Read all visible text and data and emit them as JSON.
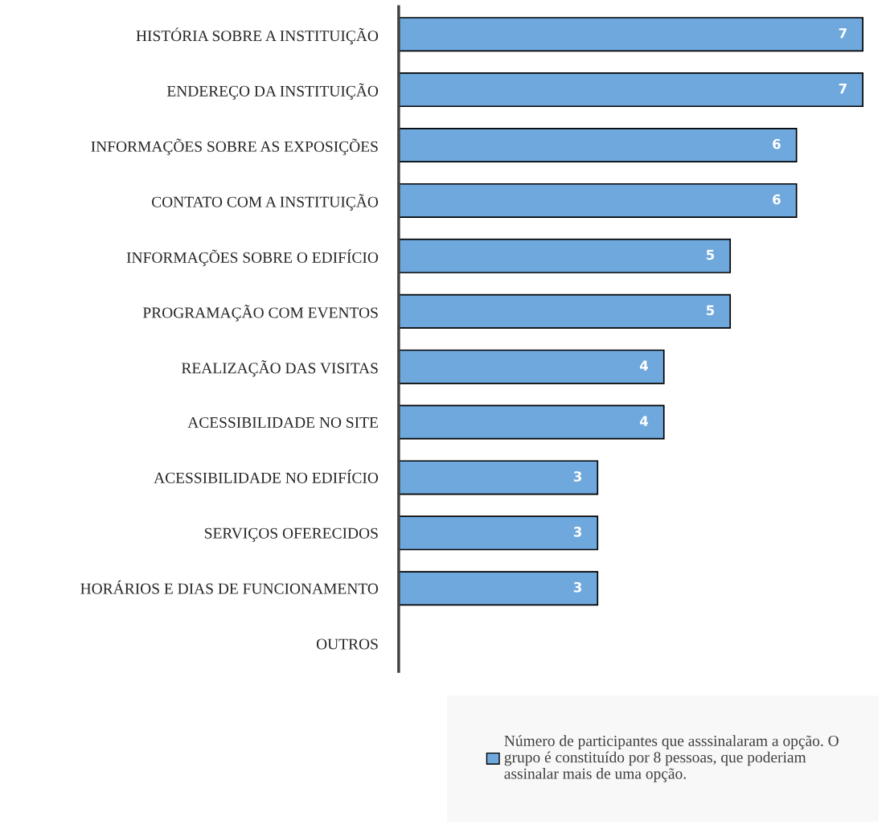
{
  "chart_data": {
    "type": "bar",
    "orientation": "horizontal",
    "categories": [
      "HISTÓRIA SOBRE A INSTITUIÇÃO",
      "ENDEREÇO DA INSTITUIÇÃO",
      "INFORMAÇÕES SOBRE AS EXPOSIÇÕES",
      "CONTATO COM A INSTITUIÇÃO",
      "INFORMAÇÕES SOBRE O EDIFÍCIO",
      "PROGRAMAÇÃO COM EVENTOS",
      "REALIZAÇÃO DAS VISITAS",
      "ACESSIBILIDADE NO SITE",
      "ACESSIBILIDADE NO EDIFÍCIO",
      "SERVIÇOS OFERECIDOS",
      "HORÁRIOS E DIAS DE FUNCIONAMENTO",
      "OUTROS"
    ],
    "series": [
      {
        "name": "Número de participantes que asssinalaram a opção. O\ngrupo é constituído por 8 pessoas, que poderiam\nassinalar mais de uma opção.",
        "color": "#6fa8dc",
        "values": [
          7,
          7,
          6,
          6,
          5,
          5,
          4,
          4,
          3,
          3,
          3,
          null
        ]
      }
    ],
    "data_labels": true,
    "legend": "bottom",
    "tick_labels": "y",
    "grid": false
  }
}
